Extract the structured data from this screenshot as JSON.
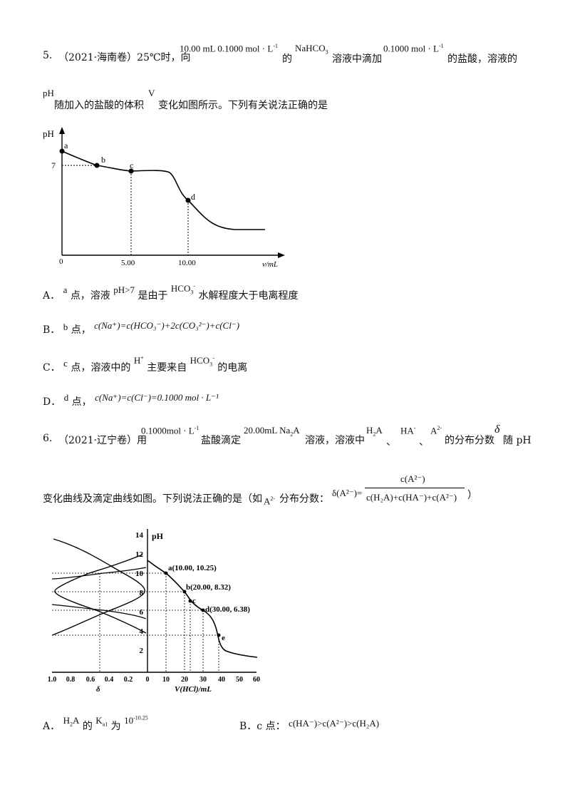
{
  "q5": {
    "number": "5.",
    "source": "（2021·海南卷）25℃时，向",
    "conc1": "10.00 mL 0.1000 mol · L",
    "conc1_sup": "-1",
    "de": "的",
    "salt": "NaHCO",
    "salt_sub": "3",
    "mid": "溶液中滴加",
    "conc2": "0.1000 mol · L",
    "conc2_sup": "-1",
    "tail": "的盐酸，溶液的",
    "line2_ph": "pH",
    "line2_a": "随加入的盐酸的体积",
    "line2_v": "V",
    "line2_b": "变化如图所示。下列有关说法正确的是",
    "chart": {
      "ylabel": "pH",
      "xlabel": "v/mL",
      "tick_7": "7",
      "tick_0": "0",
      "tick_5": "5.00",
      "tick_10": "10.00",
      "pt_a": "a",
      "pt_b": "b",
      "pt_c": "c",
      "pt_d": "d"
    },
    "optA": {
      "label": "A．",
      "a": "a",
      "t1": "点，溶液",
      "ph": "pH>7",
      "t2": "是由于",
      "ion": "HCO",
      "ion_sub": "3",
      "ion_sup": "-",
      "t3": "水解程度大于电离程度"
    },
    "optB": {
      "label": "B．",
      "b": "b",
      "t1": "点，",
      "eq": "c(Na⁺)=c(HCO₃⁻)+2c(CO₃²⁻)+c(Cl⁻)"
    },
    "optC": {
      "label": "C．",
      "c": "c",
      "t1": "点，溶液中的",
      "h": "H",
      "h_sup": "+",
      "t2": "主要来自",
      "ion": "HCO",
      "ion_sub": "3",
      "ion_sup": "-",
      "t3": "的电离"
    },
    "optD": {
      "label": "D．",
      "d": "d",
      "t1": "点，",
      "eq": "c(Na⁺)=c(Cl⁻)=0.1000 mol · L⁻¹"
    }
  },
  "q6": {
    "number": "6.",
    "source": "（2021·辽宁卷）用",
    "conc": "0.1000mol · L",
    "conc_sup": "-1",
    "t1": "盐酸滴定",
    "conc2": "20.00mL Na",
    "na_sub": "2",
    "conc2_b": "A",
    "t2": "溶液，溶液中",
    "h2a": "H",
    "h2a_sub": "2",
    "h2a_b": "A",
    "sep1": "、",
    "ha": "HA",
    "ha_sup": "-",
    "sep2": "、",
    "a2": "A",
    "a2_sup": "2-",
    "t3": "的分布分数",
    "delta": "δ",
    "t4": "随 pH",
    "line2_a": "变化曲线及滴定曲线如图。下列说法正确的是（如",
    "line2_a2": "A",
    "line2_a2_sup": "2-",
    "line2_b": "分布分数：",
    "frac_left": "δ(A²⁻)=",
    "frac_num": "c(A²⁻)",
    "frac_den": "c(H₂A)+c(HA⁻)+c(A²⁻)",
    "frac_close": "）",
    "chart": {
      "ylabel": "pH",
      "yticks": [
        "14",
        "12",
        "10",
        "8",
        "6",
        "4",
        "2"
      ],
      "xticks_left": [
        "1.0",
        "0.8",
        "0.6",
        "0.4",
        "0.2",
        "0"
      ],
      "xticks_right": [
        "10",
        "20",
        "30",
        "40",
        "50",
        "60"
      ],
      "xlabel_left": "δ",
      "xlabel_right": "V(HCl)/mL",
      "pt_a": "a(10.00, 10.25)",
      "pt_b": "b(20.00, 8.32)",
      "pt_c": "c",
      "pt_d": "d(30.00, 6.38)",
      "pt_e": "e"
    },
    "optA": {
      "label": "A．",
      "h": "H",
      "h_sub": "2",
      "h_b": "A",
      "t1": "的",
      "k": "K",
      "k_sub": "a1",
      "t2": "为",
      "val": "10",
      "val_sup": "-10.25"
    },
    "optB": {
      "label": "B．c 点：",
      "eq": "c(HA⁻)>c(A²⁻)>c(H₂A)"
    }
  }
}
